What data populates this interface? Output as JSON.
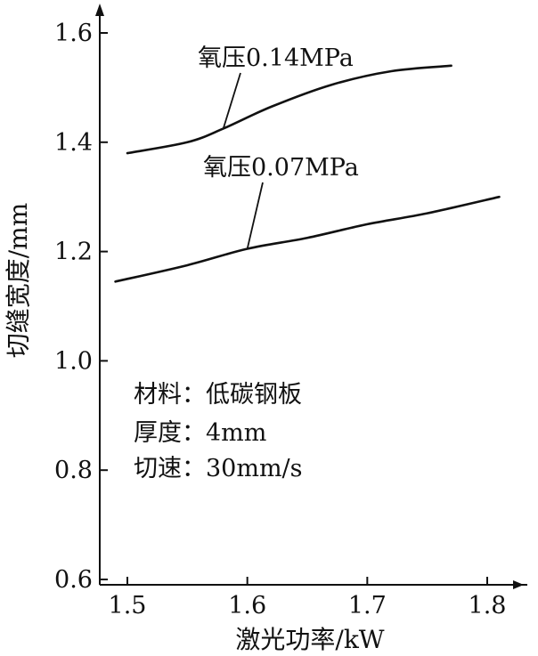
{
  "chart_data": {
    "type": "line",
    "title": "",
    "xlabel": "激光功率/kW",
    "ylabel": "切缝宽度/mm",
    "xlim": [
      1.48,
      1.84
    ],
    "ylim": [
      0.6,
      1.62
    ],
    "xticks": [
      1.5,
      1.6,
      1.7,
      1.8
    ],
    "yticks": [
      0.6,
      0.8,
      1.0,
      1.2,
      1.4,
      1.6
    ],
    "xtick_labels": [
      "1.5",
      "1.6",
      "1.7",
      "1.8"
    ],
    "ytick_labels": [
      "0.6",
      "0.8",
      "1.0",
      "1.2",
      "1.4",
      "1.6"
    ],
    "grid": false,
    "legend": "none",
    "series": [
      {
        "name": "氧压0.14MPa",
        "x": [
          1.5,
          1.55,
          1.58,
          1.62,
          1.67,
          1.72,
          1.77
        ],
        "y": [
          1.38,
          1.4,
          1.425,
          1.465,
          1.505,
          1.53,
          1.54
        ]
      },
      {
        "name": "氧压0.07MPa",
        "x": [
          1.49,
          1.55,
          1.6,
          1.65,
          1.7,
          1.75,
          1.81
        ],
        "y": [
          1.145,
          1.175,
          1.205,
          1.225,
          1.25,
          1.27,
          1.3
        ]
      }
    ],
    "annotations": [
      "材料：低碳钢板",
      "厚度：4mm",
      "切速：30mm/s"
    ]
  }
}
